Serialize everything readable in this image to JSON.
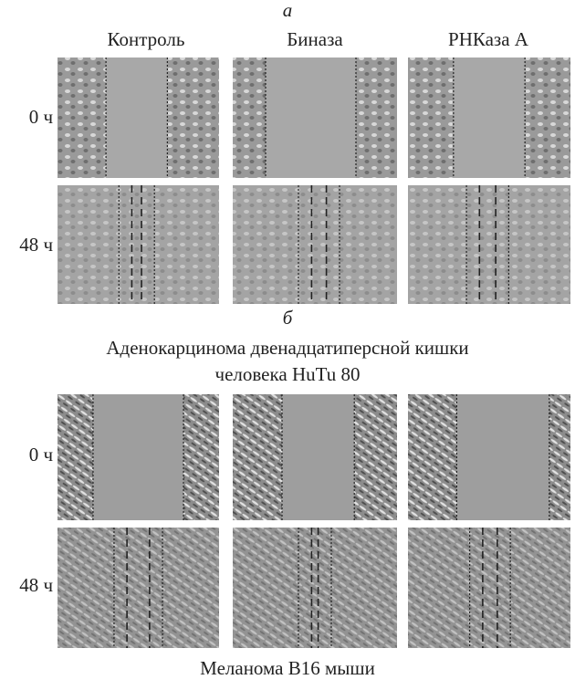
{
  "panel_a": {
    "label": "а",
    "columns": [
      "Контроль",
      "Биназа",
      "РНКаза А"
    ],
    "rows": [
      "0 ч",
      "48 ч"
    ]
  },
  "panel_b": {
    "label": "б",
    "caption_top": [
      "Аденокарцинома двенадцатиперсной кишки",
      "человека HuTu 80"
    ],
    "rows": [
      "0 ч",
      "48 ч"
    ],
    "caption_bottom": "Меланома В16 мыши"
  }
}
